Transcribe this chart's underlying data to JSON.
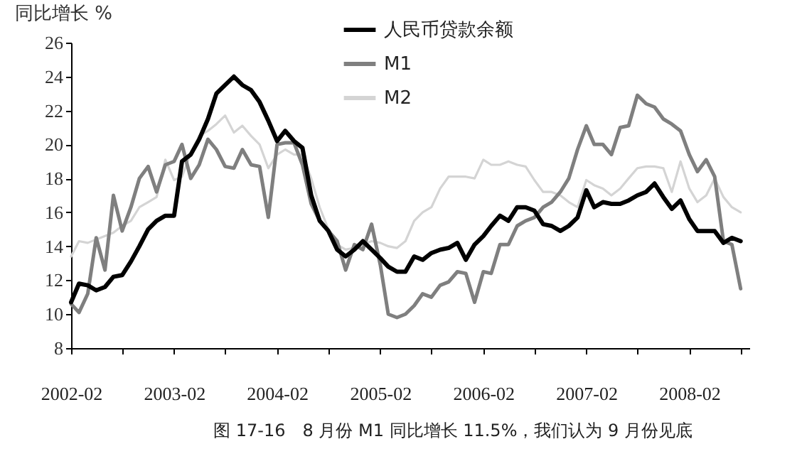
{
  "chart_data": {
    "type": "line",
    "title": "图 17-16　8 月份 M1 同比增长 11.5%，我们认为 9 月份见底",
    "ylabel": "同比增长 %",
    "x": [
      "2002-02",
      "2002-03",
      "2002-04",
      "2002-05",
      "2002-06",
      "2002-07",
      "2002-08",
      "2002-09",
      "2002-10",
      "2002-11",
      "2002-12",
      "2003-01",
      "2003-02",
      "2003-03",
      "2003-04",
      "2003-05",
      "2003-06",
      "2003-07",
      "2003-08",
      "2003-09",
      "2003-10",
      "2003-11",
      "2003-12",
      "2004-01",
      "2004-02",
      "2004-03",
      "2004-04",
      "2004-05",
      "2004-06",
      "2004-07",
      "2004-08",
      "2004-09",
      "2004-10",
      "2004-11",
      "2004-12",
      "2005-01",
      "2005-02",
      "2005-03",
      "2005-04",
      "2005-05",
      "2005-06",
      "2005-07",
      "2005-08",
      "2005-09",
      "2005-10",
      "2005-11",
      "2005-12",
      "2006-01",
      "2006-02",
      "2006-03",
      "2006-04",
      "2006-05",
      "2006-06",
      "2006-07",
      "2006-08",
      "2006-09",
      "2006-10",
      "2006-11",
      "2006-12",
      "2007-01",
      "2007-02",
      "2007-03",
      "2007-04",
      "2007-05",
      "2007-06",
      "2007-07",
      "2007-08",
      "2007-09",
      "2007-10",
      "2007-11",
      "2007-12",
      "2008-01",
      "2008-02",
      "2008-03",
      "2008-04",
      "2008-05",
      "2008-06",
      "2008-07",
      "2008-08"
    ],
    "series": [
      {
        "name": "人民币贷款余额",
        "color": "#000000",
        "values": [
          10.7,
          11.8,
          11.7,
          11.4,
          11.6,
          12.2,
          12.3,
          13.1,
          14.0,
          15.0,
          15.5,
          15.8,
          15.8,
          19.0,
          19.4,
          20.3,
          21.5,
          23.0,
          23.5,
          24.0,
          23.5,
          23.2,
          22.5,
          21.4,
          20.2,
          20.8,
          20.2,
          19.8,
          17.0,
          15.5,
          14.9,
          13.8,
          13.4,
          13.8,
          14.3,
          13.8,
          13.3,
          12.8,
          12.5,
          12.5,
          13.4,
          13.2,
          13.6,
          13.8,
          13.9,
          14.2,
          13.2,
          14.1,
          14.6,
          15.2,
          15.8,
          15.5,
          16.3,
          16.3,
          16.1,
          15.3,
          15.2,
          14.9,
          15.2,
          15.7,
          17.3,
          16.3,
          16.6,
          16.5,
          16.5,
          16.7,
          17.0,
          17.2,
          17.7,
          16.9,
          16.2,
          16.7,
          15.6,
          14.9,
          14.9,
          14.9,
          14.2,
          14.5,
          14.3
        ]
      },
      {
        "name": "M1",
        "color": "#7f7f7f",
        "values": [
          10.6,
          10.1,
          11.2,
          14.5,
          12.6,
          17.0,
          14.9,
          16.3,
          18.0,
          18.7,
          17.2,
          18.8,
          19.0,
          20.0,
          18.0,
          18.8,
          20.3,
          19.7,
          18.7,
          18.6,
          19.7,
          18.8,
          18.7,
          15.7,
          20.0,
          20.1,
          20.1,
          18.8,
          16.5,
          15.5,
          14.9,
          14.3,
          12.6,
          14.1,
          13.8,
          15.3,
          12.9,
          10.0,
          9.8,
          10.0,
          10.5,
          11.2,
          11.0,
          11.7,
          11.9,
          12.5,
          12.4,
          10.7,
          12.5,
          12.4,
          14.1,
          14.1,
          15.2,
          15.5,
          15.7,
          16.3,
          16.6,
          17.2,
          18.0,
          19.7,
          21.1,
          20.0,
          20.0,
          19.4,
          21.0,
          21.1,
          22.9,
          22.4,
          22.2,
          21.5,
          21.2,
          20.8,
          19.4,
          18.4,
          19.1,
          18.1,
          14.3,
          14.1,
          11.5
        ]
      },
      {
        "name": "M2",
        "color": "#d4d4d4",
        "values": [
          13.4,
          14.3,
          14.2,
          14.4,
          14.6,
          14.8,
          15.2,
          15.5,
          16.3,
          16.6,
          16.9,
          19.1,
          17.9,
          18.1,
          19.5,
          20.5,
          20.8,
          21.2,
          21.7,
          20.7,
          21.1,
          20.5,
          20.0,
          18.6,
          19.4,
          19.7,
          19.4,
          19.4,
          18.0,
          16.3,
          15.0,
          14.1,
          13.8,
          13.9,
          14.1,
          14.3,
          14.2,
          14.0,
          13.9,
          14.3,
          15.5,
          16.0,
          16.3,
          17.4,
          18.1,
          18.1,
          18.1,
          18.0,
          19.1,
          18.8,
          18.8,
          19.0,
          18.8,
          18.7,
          17.9,
          17.2,
          17.2,
          17.0,
          16.6,
          16.3,
          17.9,
          17.6,
          17.4,
          17.0,
          17.4,
          18.0,
          18.6,
          18.7,
          18.7,
          18.6,
          17.2,
          19.0,
          17.4,
          16.6,
          17.0,
          18.0,
          16.9,
          16.3,
          16.0
        ]
      }
    ],
    "xlim": [
      "2002-02",
      "2008-09"
    ],
    "xticks": [
      "2002-02",
      {
        "value": "2002-08",
        "label": null
      },
      "2003-02",
      {
        "value": "2003-08",
        "label": null
      },
      "2004-02",
      {
        "value": "2004-08",
        "label": null
      },
      "2005-02",
      {
        "value": "2005-08",
        "label": null
      },
      "2006-02",
      {
        "value": "2006-08",
        "label": null
      },
      "2007-02",
      {
        "value": "2007-08",
        "label": null
      },
      "2008-02",
      {
        "value": "2008-08",
        "label": null
      }
    ],
    "ylim": [
      8,
      26
    ],
    "yticks": [
      8,
      10,
      12,
      14,
      16,
      18,
      20,
      22,
      24,
      26
    ],
    "grid": false,
    "legend": "top",
    "line_style": "solid",
    "marker": "none"
  }
}
